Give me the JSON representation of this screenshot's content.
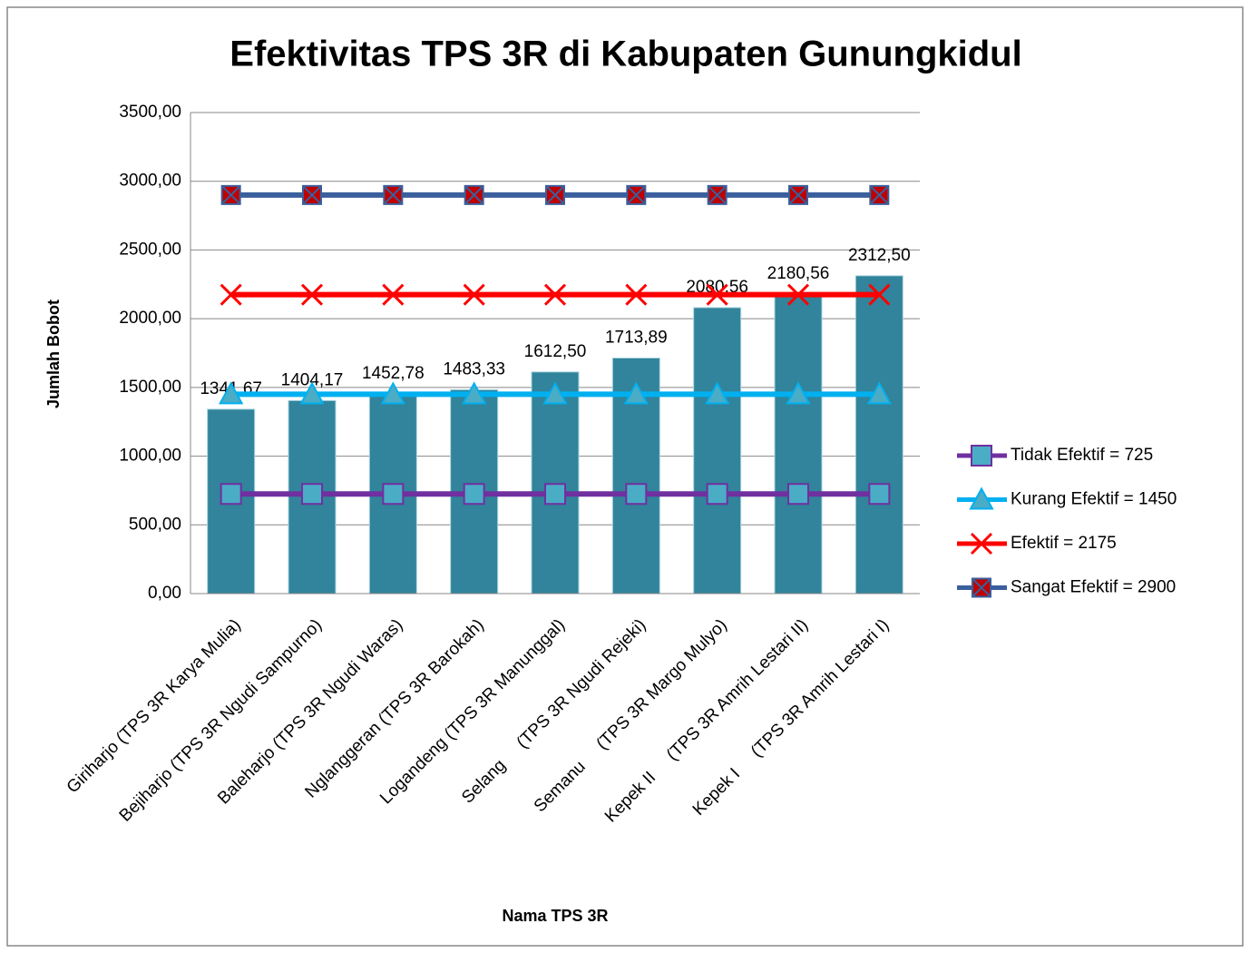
{
  "chart_data": {
    "type": "bar",
    "title": "Efektivitas TPS 3R di Kabupaten Gunungkidul",
    "x_label": "Nama TPS 3R",
    "y_label": "Jumlah Bobot",
    "categories": [
      "Giriharjo (TPS 3R Karya Mulia)",
      "Bejiharjo (TPS 3R Ngudi Sampurno)",
      "Baleharjo (TPS 3R Ngudi Waras)",
      "Nglanggeran (TPS 3R Barokah)",
      "Logandeng (TPS 3R Manunggal)",
      "Selang     (TPS 3R Ngudi Rejeki)",
      "Semanu     (TPS 3R Margo Mulyo)",
      "Kepek II     (TPS 3R Amrih Lestari II)",
      "Kepek I     (TPS 3R Amrih Lestari I)"
    ],
    "values": [
      1341.67,
      1404.17,
      1452.78,
      1483.33,
      1612.5,
      1713.89,
      2080.56,
      2180.56,
      2312.5
    ],
    "value_labels": [
      "1341,67",
      "1404,17",
      "1452,78",
      "1483,33",
      "1612,50",
      "1713,89",
      "2080,56",
      "2180,56",
      "2312,50"
    ],
    "color": "#31849b",
    "lines": [
      {
        "name": "Tidak Efektif = 725",
        "color": "#7030a0",
        "marker": "square",
        "values": [
          725,
          725,
          725,
          725,
          725,
          725,
          725,
          725,
          725
        ]
      },
      {
        "name": "Kurang Efektif = 1450",
        "color": "#00b0f0",
        "marker": "triangle",
        "values": [
          1450,
          1450,
          1450,
          1450,
          1450,
          1450,
          1450,
          1450,
          1450
        ]
      },
      {
        "name": "Efektif = 2175",
        "color": "#ff0000",
        "marker": "x",
        "values": [
          2175,
          2175,
          2175,
          2175,
          2175,
          2175,
          2175,
          2175,
          2175
        ]
      },
      {
        "name": "Sangat Efektif = 2900",
        "color": "#3a5f9c",
        "marker": "boxx",
        "values": [
          2900,
          2900,
          2900,
          2900,
          2900,
          2900,
          2900,
          2900,
          2900
        ]
      }
    ],
    "ylim": [
      0,
      3500
    ],
    "yticks": [
      {
        "value": 0,
        "label": "0,00"
      },
      {
        "value": 500,
        "label": "500,00"
      },
      {
        "value": 1000,
        "label": "1000,00"
      },
      {
        "value": 1500,
        "label": "1500,00"
      },
      {
        "value": 2000,
        "label": "2000,00"
      },
      {
        "value": 2500,
        "label": "2500,00"
      },
      {
        "value": 3000,
        "label": "3000,00"
      },
      {
        "value": 3500,
        "label": "3500,00"
      }
    ],
    "grid": true,
    "legend": "right"
  }
}
